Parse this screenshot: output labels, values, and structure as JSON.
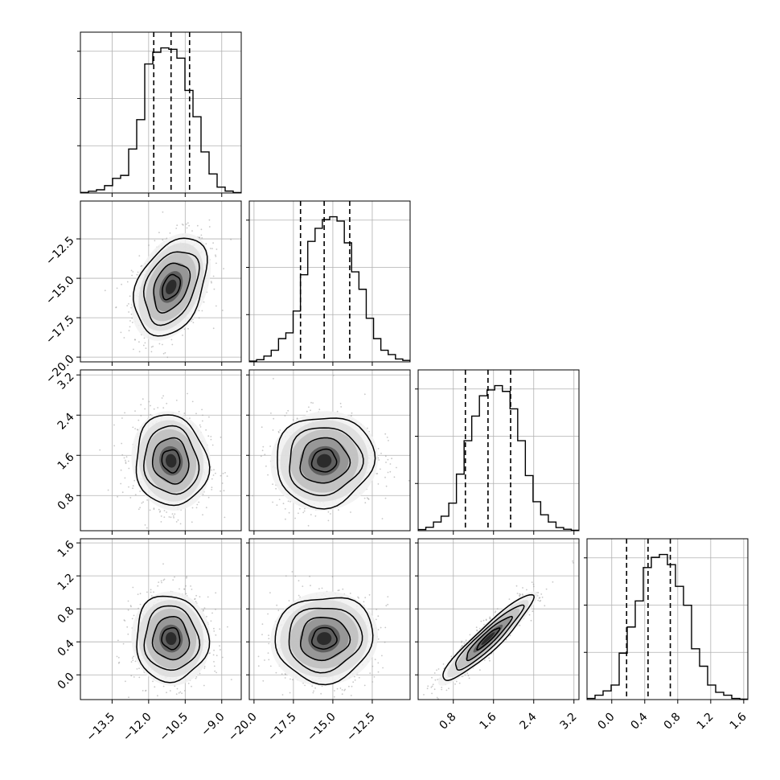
{
  "chart_data": {
    "type": "corner",
    "grid": true,
    "n_params": 4,
    "parameters": [
      {
        "label": "",
        "range": [
          -14.8,
          -8.2
        ],
        "ticks": [
          {
            "value": -13.5,
            "label": "−13.5"
          },
          {
            "value": -12.0,
            "label": "−12.0"
          },
          {
            "value": -10.5,
            "label": "−10.5"
          },
          {
            "value": -9.0,
            "label": "−9.0"
          }
        ],
        "quantiles": [
          -11.79,
          -11.08,
          -10.32
        ],
        "histogram": [
          0.004,
          0.012,
          0.022,
          0.05,
          0.1,
          0.12,
          0.3,
          0.5,
          0.88,
          0.96,
          0.99,
          0.98,
          0.92,
          0.7,
          0.52,
          0.28,
          0.13,
          0.04,
          0.013,
          0.003
        ]
      },
      {
        "label": "",
        "range": [
          -20.3,
          -10.1
        ],
        "ticks": [
          {
            "value": -20.0,
            "label": "−20.0"
          },
          {
            "value": -17.5,
            "label": "−17.5"
          },
          {
            "value": -15.0,
            "label": "−15.0"
          },
          {
            "value": -12.5,
            "label": "−12.5"
          }
        ],
        "quantiles": [
          -17.05,
          -15.55,
          -13.93
        ],
        "histogram": [
          0.005,
          0.015,
          0.04,
          0.08,
          0.16,
          0.2,
          0.35,
          0.6,
          0.83,
          0.92,
          0.98,
          1.0,
          0.97,
          0.82,
          0.62,
          0.5,
          0.3,
          0.16,
          0.08,
          0.05,
          0.02,
          0.01
        ]
      },
      {
        "label": "",
        "range": [
          0.1,
          3.3
        ],
        "ticks": [
          {
            "value": 0.8,
            "label": "0.8"
          },
          {
            "value": 1.6,
            "label": "1.6"
          },
          {
            "value": 2.4,
            "label": "2.4"
          },
          {
            "value": 3.2,
            "label": "3.2"
          }
        ],
        "quantiles": [
          1.04,
          1.49,
          1.94
        ],
        "histogram": [
          0.008,
          0.024,
          0.06,
          0.1,
          0.19,
          0.39,
          0.62,
          0.79,
          0.93,
          0.97,
          1.0,
          0.96,
          0.84,
          0.62,
          0.38,
          0.2,
          0.11,
          0.06,
          0.022,
          0.01,
          0.003
        ]
      },
      {
        "label": "",
        "range": [
          -0.3,
          1.65
        ],
        "ticks": [
          {
            "value": 0.0,
            "label": "0.0"
          },
          {
            "value": 0.4,
            "label": "0.4"
          },
          {
            "value": 0.8,
            "label": "0.8"
          },
          {
            "value": 1.2,
            "label": "1.2"
          },
          {
            "value": 1.6,
            "label": "1.6"
          }
        ],
        "quantiles": [
          0.18,
          0.44,
          0.71
        ],
        "histogram": [
          0.008,
          0.03,
          0.06,
          0.1,
          0.32,
          0.5,
          0.68,
          0.91,
          0.98,
          1.0,
          0.93,
          0.78,
          0.65,
          0.35,
          0.23,
          0.1,
          0.05,
          0.03,
          0.008,
          0.003
        ]
      }
    ],
    "correlations": [
      [
        1,
        0.35,
        -0.08,
        -0.03
      ],
      [
        0.35,
        1,
        0.05,
        0.05
      ],
      [
        -0.08,
        0.05,
        1,
        0.93
      ],
      [
        -0.03,
        0.05,
        0.93,
        1
      ]
    ],
    "means": [
      -11.08,
      -15.55,
      1.49,
      0.44
    ],
    "sigmas": [
      0.74,
      1.55,
      0.45,
      0.26
    ],
    "contour_levels": [
      0.5,
      1.0,
      1.5,
      2.0
    ]
  }
}
